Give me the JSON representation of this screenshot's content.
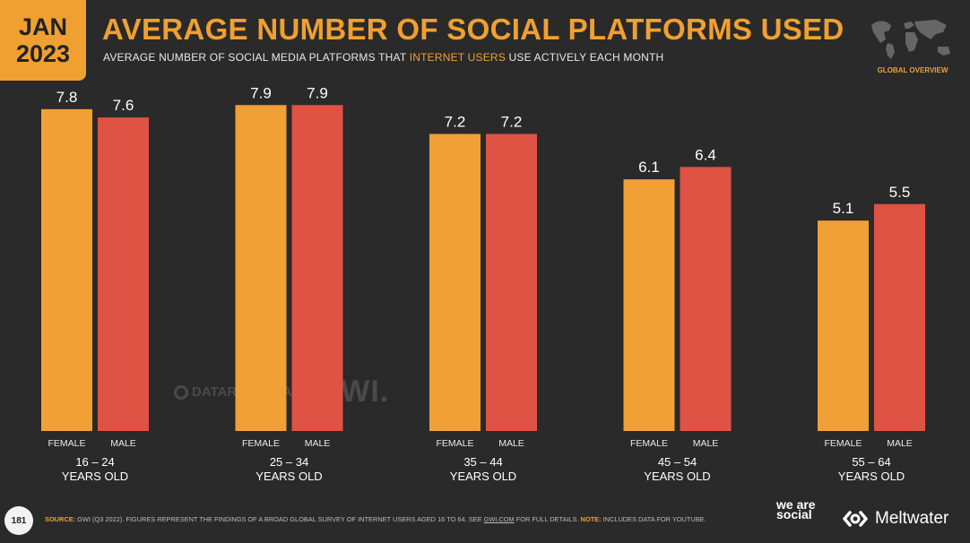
{
  "badge": {
    "month": "JAN",
    "year": "2023"
  },
  "header": {
    "title": "AVERAGE NUMBER OF SOCIAL PLATFORMS USED",
    "subtitle_pre": "AVERAGE NUMBER OF SOCIAL MEDIA PLATFORMS THAT ",
    "subtitle_highlight": "INTERNET USERS",
    "subtitle_post": " USE ACTIVELY EACH MONTH",
    "region": "GLOBAL OVERVIEW"
  },
  "watermark": {
    "datareportal": "DATAREPORTAL",
    "gwi": "GWI."
  },
  "footer": {
    "page_number": "181",
    "source_label": "SOURCE:",
    "source_text": " GWI (Q3 2022). FIGURES REPRESENT THE FINDINGS OF A BROAD GLOBAL SURVEY OF INTERNET USERS AGED 16 TO 64. SEE ",
    "source_link": "GWI.COM",
    "source_after": " FOR FULL DETAILS. ",
    "note_label": "NOTE:",
    "note_text": " INCLUDES DATA FOR YOUTUBE.",
    "brand1": "we are social",
    "brand2": "Meltwater"
  },
  "colors": {
    "female": "#f0a035",
    "male": "#e05243",
    "accent": "#f0a030"
  },
  "chart_data": {
    "type": "bar",
    "categories": [
      "16 – 24",
      "25 – 34",
      "35 – 44",
      "45 – 54",
      "55 – 64"
    ],
    "category_suffix": "YEARS OLD",
    "series": [
      {
        "name": "FEMALE",
        "values": [
          7.8,
          7.9,
          7.2,
          6.1,
          5.1
        ]
      },
      {
        "name": "MALE",
        "values": [
          7.6,
          7.9,
          7.2,
          6.4,
          5.5
        ]
      }
    ],
    "ylim": [
      0,
      9.1
    ]
  }
}
